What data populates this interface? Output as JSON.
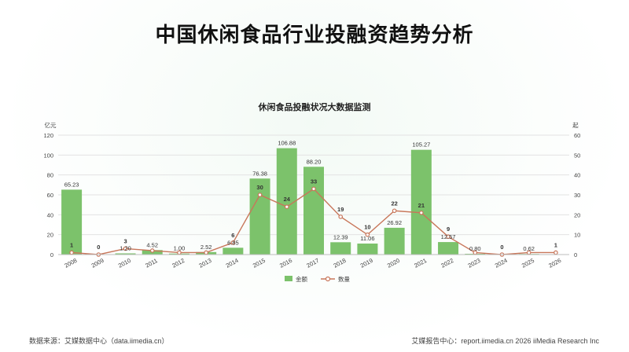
{
  "page_title": "中国休闲食品行业投融资趋势分析",
  "footer": {
    "source": "数据来源：艾媒数据中心（data.iimedia.cn）",
    "report": "艾媒报告中心：report.iimedia.cn  2026 iiMedia Research Inc"
  },
  "colors": {
    "bar": "#7cc26b",
    "line": "#c8765a",
    "grid": "#e3e3e3"
  },
  "chart_data": {
    "type": "bar",
    "title": "休闲食品投融状况大数据监测",
    "ylabel_left": "亿元",
    "ylabel_right": "起",
    "ylim_left": [
      0,
      120
    ],
    "ylim_right": [
      0,
      60
    ],
    "yticks_left": [
      "0",
      "20",
      "40",
      "60",
      "80",
      "100",
      "120"
    ],
    "yticks_right": [
      "0",
      "10",
      "20",
      "30",
      "40",
      "50",
      "60"
    ],
    "categories": [
      "2008",
      "2009",
      "2010",
      "2011",
      "2012",
      "2013",
      "2014",
      "2015",
      "2016",
      "2017",
      "2018",
      "2019",
      "2020",
      "2021",
      "2022",
      "2023",
      "2024",
      "2025",
      "2026"
    ],
    "series": [
      {
        "name": "金额",
        "type": "bar",
        "axis": "left",
        "values": [
          65.23,
          0,
          1.2,
          4.52,
          1.0,
          2.52,
          6.85,
          76.38,
          106.88,
          88.2,
          12.39,
          11.06,
          26.92,
          105.27,
          12.57,
          0.8,
          0,
          0.62,
          0
        ],
        "labels": [
          "65.23",
          "",
          "1.20",
          "4.52",
          "1.00",
          "2.52",
          "6.85",
          "76.38",
          "106.88",
          "88.20",
          "12.39",
          "11.06",
          "26.92",
          "105.27",
          "12.57",
          "0.80",
          "",
          "0.62",
          ""
        ]
      },
      {
        "name": "数量",
        "type": "line",
        "axis": "right",
        "values": [
          1,
          0,
          3,
          2,
          1,
          1,
          6,
          30,
          24,
          33,
          19,
          10,
          22,
          21,
          9,
          1,
          0,
          1,
          1
        ],
        "labels": [
          "1",
          "0",
          "3",
          "",
          "",
          "",
          "6",
          "30",
          "24",
          "33",
          "19",
          "10",
          "22",
          "21",
          "9",
          "",
          "0",
          "",
          "1"
        ]
      }
    ],
    "legend_position": "bottom"
  }
}
